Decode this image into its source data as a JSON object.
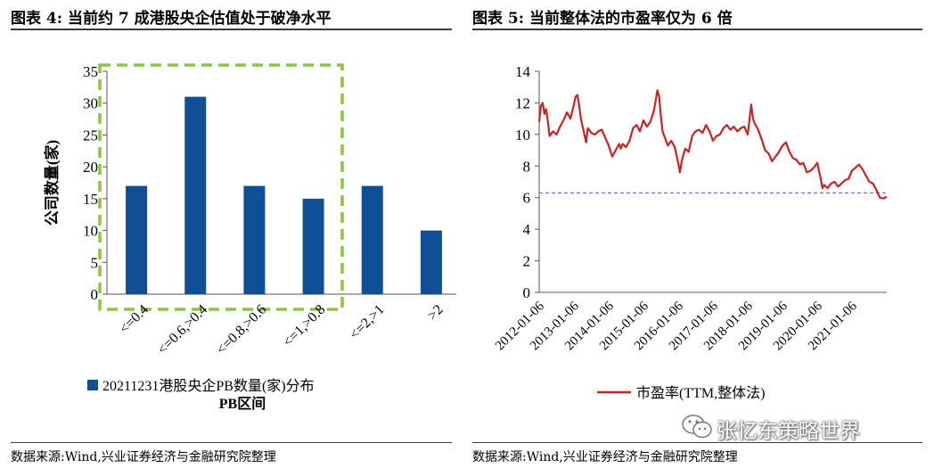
{
  "left": {
    "title": "图表 4:  当前约 7 成港股央企估值处于破净水平",
    "source": "数据来源:Wind,兴业证券经济与金融研究院整理",
    "chart_data": {
      "type": "bar",
      "categories": [
        "<=0.4",
        "<=0.6,>0.4",
        "<=0.8,>0.6",
        "<=1,>0.8",
        "<=2,>1",
        ">2"
      ],
      "series": [
        {
          "name": "20211231港股央企PB数量(家)分布",
          "values": [
            17,
            31,
            17,
            15,
            17,
            10
          ]
        }
      ],
      "xlabel": "PB区间",
      "ylabel": "公司数量(家)",
      "ylim": [
        0,
        35
      ],
      "yticks": [
        "0",
        "5",
        "10",
        "15",
        "20",
        "25",
        "30",
        "35"
      ],
      "highlight": "green dashed box around first four categories",
      "bar_color": "#0f4f96",
      "legend_position": "bottom"
    }
  },
  "right": {
    "title": "图表 5:  当前整体法的市盈率仅为 6 倍",
    "source": "数据来源:Wind,兴业证券经济与金融研究院整理",
    "chart_data": {
      "type": "line",
      "x_tick_labels": [
        "2012-01-06",
        "2013-01-06",
        "2014-01-06",
        "2015-01-06",
        "2016-01-06",
        "2017-01-06",
        "2018-01-06",
        "2019-01-06",
        "2020-01-06",
        "2021-01-06"
      ],
      "yticks": [
        "0",
        "2",
        "4",
        "6",
        "8",
        "10",
        "12",
        "14"
      ],
      "ylim": [
        0,
        14
      ],
      "xlim": [
        2012.0,
        2022.0
      ],
      "series": [
        {
          "name": "市盈率(TTM,整体法)",
          "color": "#cc2222",
          "x": [
            2012.0,
            2012.05,
            2012.1,
            2012.15,
            2012.2,
            2012.25,
            2012.3,
            2012.4,
            2012.5,
            2012.6,
            2012.7,
            2012.8,
            2012.9,
            2013.0,
            2013.05,
            2013.1,
            2013.15,
            2013.2,
            2013.3,
            2013.35,
            2013.4,
            2013.5,
            2013.6,
            2013.7,
            2013.8,
            2013.9,
            2014.0,
            2014.1,
            2014.2,
            2014.3,
            2014.35,
            2014.4,
            2014.5,
            2014.6,
            2014.7,
            2014.8,
            2014.9,
            2015.0,
            2015.1,
            2015.2,
            2015.3,
            2015.35,
            2015.4,
            2015.45,
            2015.5,
            2015.55,
            2015.6,
            2015.7,
            2015.8,
            2015.9,
            2016.0,
            2016.05,
            2016.1,
            2016.2,
            2016.3,
            2016.4,
            2016.5,
            2016.6,
            2016.7,
            2016.8,
            2016.9,
            2017.0,
            2017.1,
            2017.2,
            2017.3,
            2017.4,
            2017.5,
            2017.6,
            2017.7,
            2017.8,
            2017.9,
            2018.0,
            2018.05,
            2018.1,
            2018.15,
            2018.2,
            2018.3,
            2018.4,
            2018.5,
            2018.6,
            2018.7,
            2018.8,
            2018.9,
            2019.0,
            2019.1,
            2019.2,
            2019.3,
            2019.4,
            2019.5,
            2019.6,
            2019.7,
            2019.8,
            2019.9,
            2020.0,
            2020.1,
            2020.15,
            2020.2,
            2020.3,
            2020.4,
            2020.5,
            2020.6,
            2020.7,
            2020.8,
            2020.9,
            2021.0,
            2021.1,
            2021.2,
            2021.3,
            2021.4,
            2021.5,
            2021.6,
            2021.7,
            2021.8,
            2021.9,
            2022.0
          ],
          "y": [
            10.8,
            11.8,
            12.0,
            11.3,
            11.6,
            10.8,
            9.9,
            10.2,
            10.0,
            10.5,
            10.9,
            11.4,
            11.0,
            11.9,
            12.4,
            12.5,
            11.8,
            11.0,
            10.0,
            9.5,
            10.4,
            10.1,
            10.0,
            10.2,
            10.3,
            9.8,
            9.3,
            8.6,
            9.0,
            9.4,
            9.1,
            9.4,
            9.2,
            9.6,
            10.4,
            10.6,
            10.2,
            10.9,
            10.5,
            10.8,
            11.5,
            12.1,
            12.8,
            12.4,
            11.2,
            10.2,
            9.9,
            9.3,
            9.6,
            9.2,
            8.2,
            7.6,
            8.3,
            9.1,
            8.9,
            9.9,
            10.2,
            10.3,
            10.1,
            10.6,
            10.2,
            9.6,
            9.9,
            10.0,
            10.4,
            10.6,
            10.3,
            10.5,
            10.2,
            10.4,
            10.5,
            10.0,
            10.9,
            11.9,
            11.0,
            10.7,
            10.3,
            9.7,
            9.0,
            8.8,
            8.3,
            8.6,
            8.9,
            9.3,
            9.5,
            8.9,
            8.5,
            8.4,
            8.1,
            8.2,
            7.6,
            7.7,
            7.9,
            8.2,
            7.2,
            6.6,
            6.8,
            6.6,
            6.9,
            7.0,
            6.7,
            6.9,
            7.1,
            7.2,
            7.7,
            7.9,
            8.1,
            7.8,
            7.4,
            7.0,
            6.9,
            6.5,
            6.0,
            5.95,
            6.05
          ]
        }
      ],
      "reference_line": {
        "y": 6.3,
        "style": "dashed",
        "color": "#5b7fc7"
      },
      "legend_position": "bottom"
    }
  },
  "watermark": {
    "text": "张忆东策略世界",
    "icon": "wechat-icon"
  }
}
